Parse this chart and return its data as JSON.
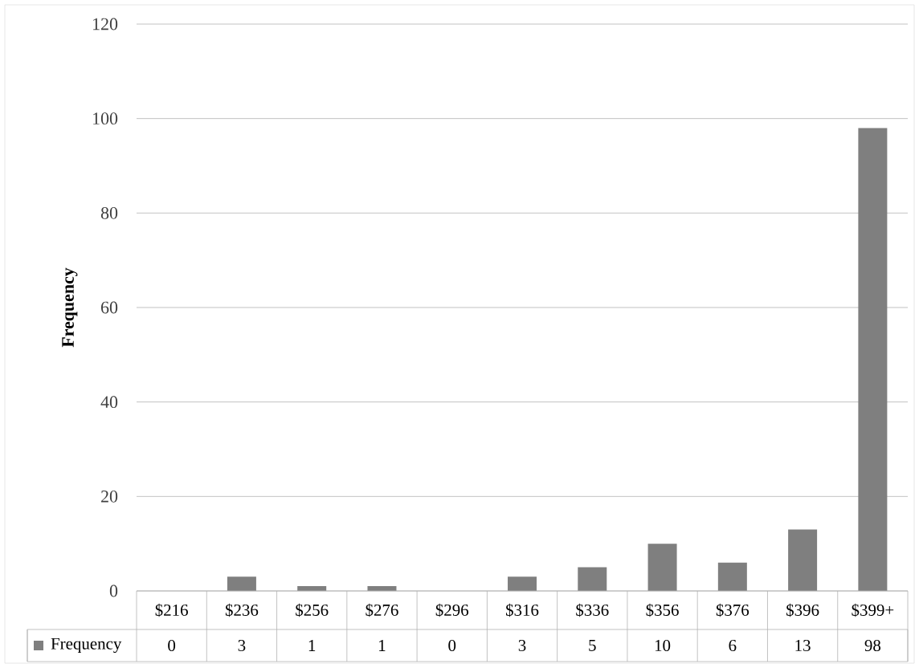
{
  "chart_data": {
    "type": "bar",
    "ylabel": "Frequency",
    "categories": [
      "$216",
      "$236",
      "$256",
      "$276",
      "$296",
      "$316",
      "$336",
      "$356",
      "$376",
      "$396",
      "$399+"
    ],
    "series": [
      {
        "name": "Frequency",
        "color": "#7f7f7f",
        "values": [
          0,
          3,
          1,
          1,
          0,
          3,
          5,
          10,
          6,
          13,
          98
        ]
      }
    ],
    "ylim": [
      0,
      120
    ],
    "yticks": [
      0,
      20,
      40,
      60,
      80,
      100,
      120
    ],
    "grid": "y",
    "data_labels": true
  }
}
